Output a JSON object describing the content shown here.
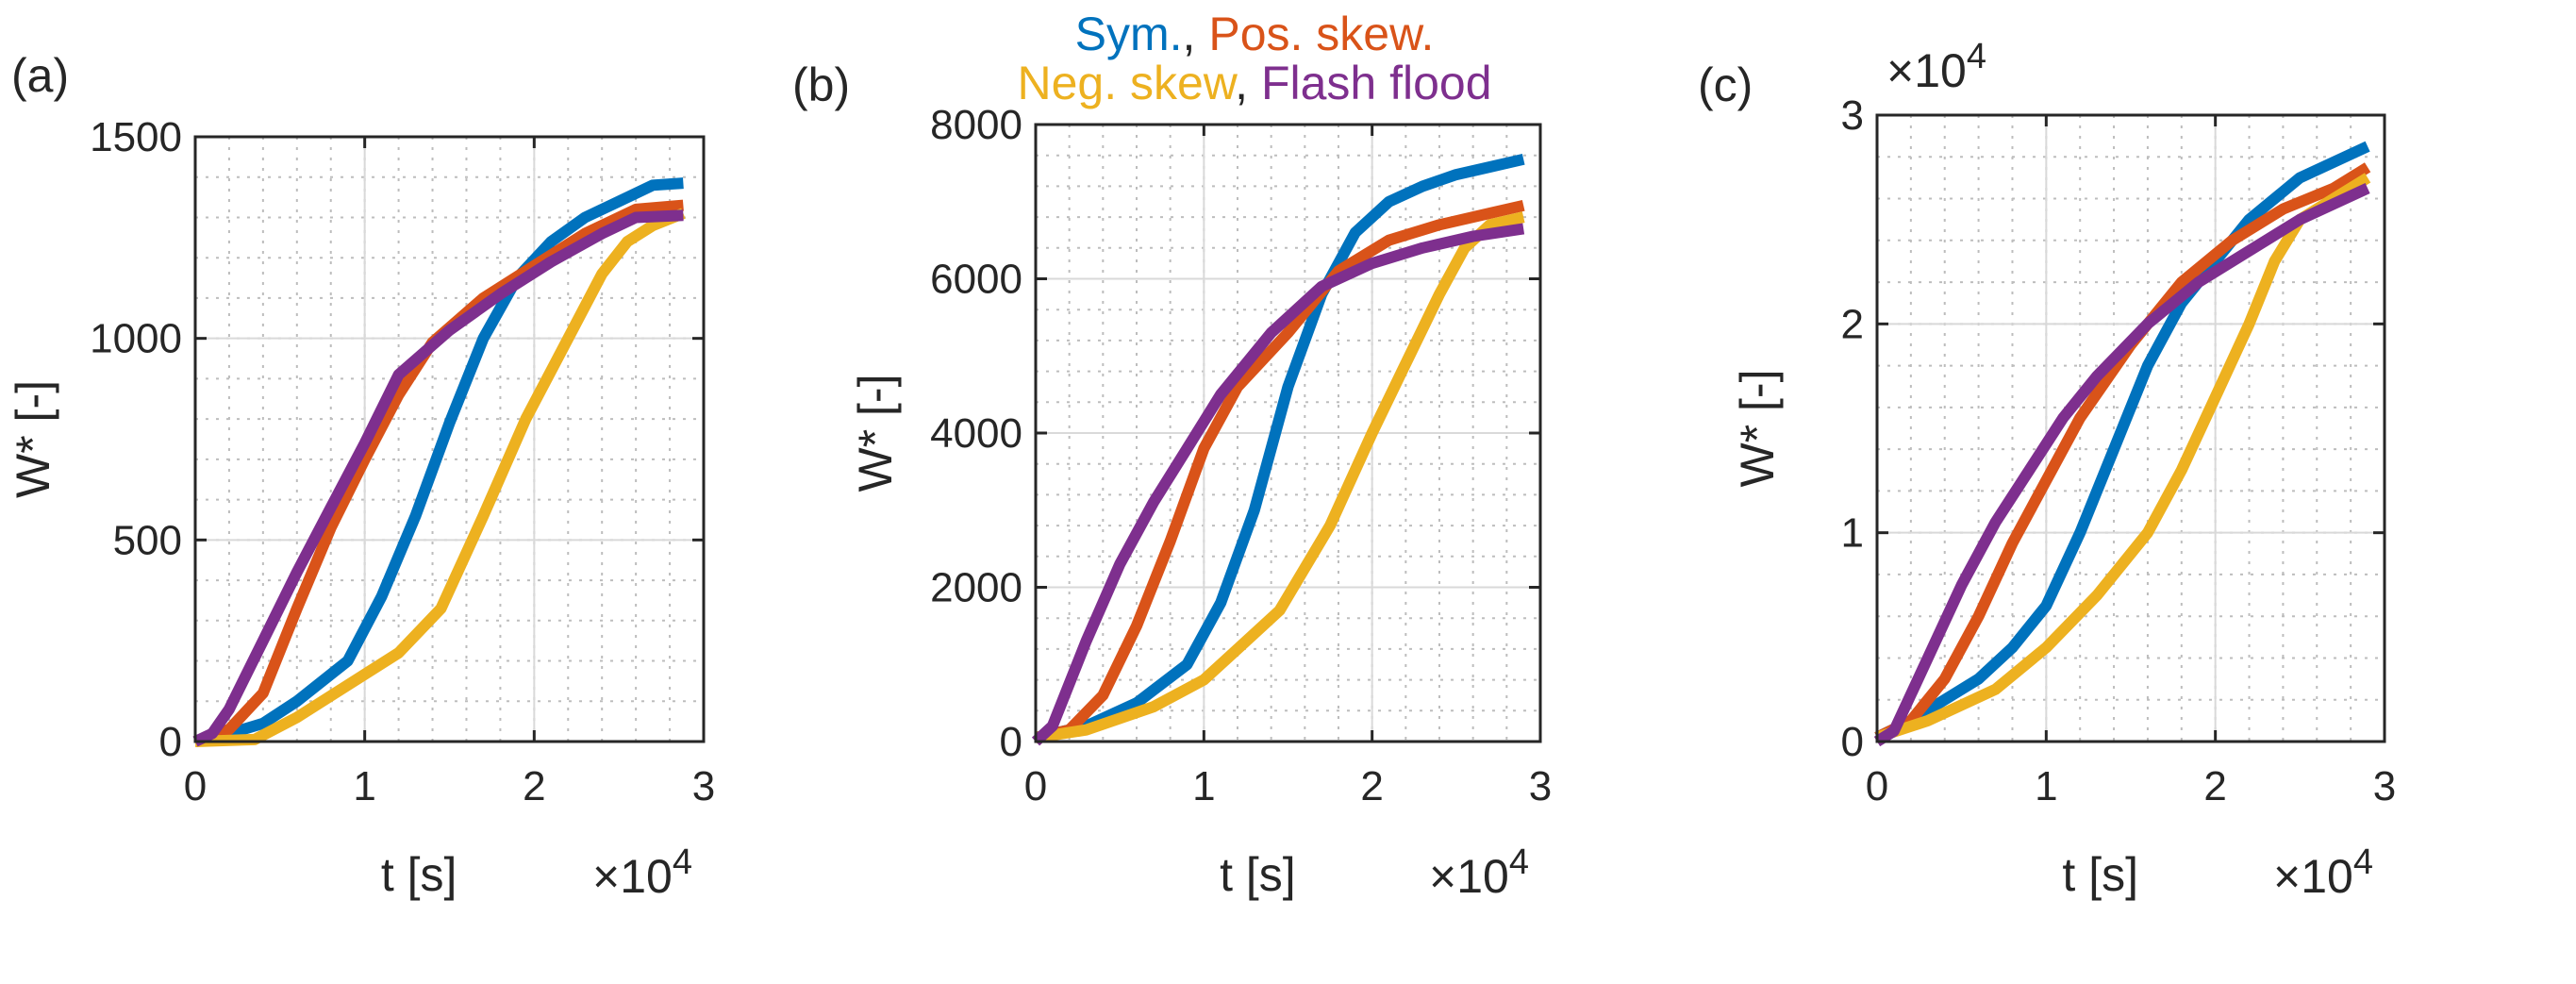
{
  "legend": {
    "line1": [
      {
        "text": "Sym.",
        "color": "#0072BD"
      },
      {
        "text": ", ",
        "color": "#262626"
      },
      {
        "text": "Pos. skew.",
        "color": "#D95319"
      }
    ],
    "line2": [
      {
        "text": "Neg. skew",
        "color": "#EDB120"
      },
      {
        "text": ", ",
        "color": "#262626"
      },
      {
        "text": "Flash flood",
        "color": "#7E2F8E"
      }
    ]
  },
  "chart_data": [
    {
      "type": "line",
      "panel_label": "(a)",
      "xlabel": "t [s]",
      "ylabel": "W* [-]",
      "x_exponent_label": "×10",
      "x_exponent_power": "4",
      "y_exponent_label": "",
      "y_exponent_power": "",
      "xlim": [
        0,
        3
      ],
      "ylim": [
        0,
        1500
      ],
      "xticks": [
        0,
        1,
        2,
        3
      ],
      "xtick_labels": [
        "0",
        "1",
        "2",
        "3"
      ],
      "yticks": [
        0,
        500,
        1000,
        1500
      ],
      "ytick_labels": [
        "0",
        "500",
        "1000",
        "1500"
      ],
      "grid": true,
      "series": [
        {
          "name": "Sym.",
          "color": "#0072BD",
          "x": [
            0,
            0.2,
            0.4,
            0.6,
            0.9,
            1.1,
            1.3,
            1.5,
            1.7,
            1.9,
            2.1,
            2.3,
            2.5,
            2.7,
            2.88
          ],
          "y": [
            0,
            20,
            45,
            100,
            200,
            360,
            560,
            790,
            1000,
            1150,
            1240,
            1300,
            1340,
            1380,
            1385
          ]
        },
        {
          "name": "Pos. skew.",
          "color": "#D95319",
          "x": [
            0,
            0.2,
            0.4,
            0.6,
            0.8,
            1.0,
            1.2,
            1.4,
            1.7,
            2.0,
            2.3,
            2.6,
            2.88
          ],
          "y": [
            0,
            30,
            120,
            330,
            530,
            700,
            860,
            990,
            1100,
            1180,
            1260,
            1320,
            1330
          ]
        },
        {
          "name": "Neg. skew",
          "color": "#EDB120",
          "x": [
            0,
            0.35,
            0.6,
            0.9,
            1.2,
            1.45,
            1.7,
            1.95,
            2.2,
            2.4,
            2.55,
            2.7,
            2.88
          ],
          "y": [
            0,
            5,
            60,
            140,
            220,
            330,
            560,
            800,
            1000,
            1160,
            1240,
            1280,
            1310
          ]
        },
        {
          "name": "Flash flood",
          "color": "#7E2F8E",
          "x": [
            0,
            0.1,
            0.2,
            0.4,
            0.6,
            0.8,
            1.0,
            1.2,
            1.5,
            1.8,
            2.1,
            2.4,
            2.6,
            2.88
          ],
          "y": [
            0,
            20,
            80,
            250,
            420,
            580,
            740,
            910,
            1020,
            1110,
            1190,
            1260,
            1300,
            1305
          ]
        }
      ]
    },
    {
      "type": "line",
      "panel_label": "(b)",
      "xlabel": "t [s]",
      "ylabel": "W* [-]",
      "x_exponent_label": "×10",
      "x_exponent_power": "4",
      "y_exponent_label": "",
      "y_exponent_power": "",
      "xlim": [
        0,
        3
      ],
      "ylim": [
        0,
        8000
      ],
      "xticks": [
        0,
        1,
        2,
        3
      ],
      "xtick_labels": [
        "0",
        "1",
        "2",
        "3"
      ],
      "yticks": [
        0,
        2000,
        4000,
        6000,
        8000
      ],
      "ytick_labels": [
        "0",
        "2000",
        "4000",
        "6000",
        "8000"
      ],
      "grid": true,
      "series": [
        {
          "name": "Sym.",
          "color": "#0072BD",
          "x": [
            0,
            0.3,
            0.6,
            0.9,
            1.1,
            1.3,
            1.5,
            1.7,
            1.9,
            2.1,
            2.3,
            2.5,
            2.7,
            2.9
          ],
          "y": [
            50,
            200,
            500,
            1000,
            1800,
            3000,
            4600,
            5800,
            6600,
            7000,
            7200,
            7350,
            7450,
            7550
          ]
        },
        {
          "name": "Pos. skew.",
          "color": "#D95319",
          "x": [
            0,
            0.2,
            0.4,
            0.6,
            0.8,
            1.0,
            1.2,
            1.5,
            1.8,
            2.1,
            2.4,
            2.7,
            2.9
          ],
          "y": [
            50,
            150,
            600,
            1500,
            2600,
            3800,
            4600,
            5300,
            6100,
            6500,
            6700,
            6850,
            6950
          ]
        },
        {
          "name": "Neg. skew",
          "color": "#EDB120",
          "x": [
            0,
            0.3,
            0.7,
            1.0,
            1.2,
            1.45,
            1.75,
            2.0,
            2.2,
            2.4,
            2.55,
            2.7,
            2.9
          ],
          "y": [
            50,
            150,
            450,
            800,
            1200,
            1700,
            2800,
            4000,
            4900,
            5800,
            6400,
            6700,
            6800
          ]
        },
        {
          "name": "Flash flood",
          "color": "#7E2F8E",
          "x": [
            0,
            0.1,
            0.3,
            0.5,
            0.7,
            0.9,
            1.1,
            1.4,
            1.7,
            2.0,
            2.3,
            2.6,
            2.9
          ],
          "y": [
            0,
            200,
            1300,
            2300,
            3100,
            3800,
            4500,
            5300,
            5900,
            6200,
            6400,
            6550,
            6650
          ]
        }
      ]
    },
    {
      "type": "line",
      "panel_label": "(c)",
      "xlabel": "t [s]",
      "ylabel": "W* [-]",
      "x_exponent_label": "×10",
      "x_exponent_power": "4",
      "y_exponent_label": "×10",
      "y_exponent_power": "4",
      "xlim": [
        0,
        3
      ],
      "ylim": [
        0,
        3
      ],
      "xticks": [
        0,
        1,
        2,
        3
      ],
      "xtick_labels": [
        "0",
        "1",
        "2",
        "3"
      ],
      "yticks": [
        0,
        1,
        2,
        3
      ],
      "ytick_labels": [
        "0",
        "1",
        "2",
        "3"
      ],
      "grid": true,
      "series": [
        {
          "name": "Sym.",
          "color": "#0072BD",
          "x": [
            0,
            0.2,
            0.4,
            0.6,
            0.8,
            1.0,
            1.2,
            1.4,
            1.6,
            1.8,
            2.0,
            2.2,
            2.5,
            2.9
          ],
          "y": [
            0.02,
            0.1,
            0.2,
            0.3,
            0.45,
            0.65,
            1.0,
            1.4,
            1.8,
            2.1,
            2.3,
            2.5,
            2.7,
            2.85
          ]
        },
        {
          "name": "Pos. skew.",
          "color": "#D95319",
          "x": [
            0,
            0.2,
            0.4,
            0.6,
            0.8,
            1.0,
            1.2,
            1.5,
            1.8,
            2.1,
            2.4,
            2.7,
            2.9
          ],
          "y": [
            0.02,
            0.1,
            0.3,
            0.6,
            0.95,
            1.25,
            1.55,
            1.9,
            2.2,
            2.4,
            2.55,
            2.65,
            2.75
          ]
        },
        {
          "name": "Neg. skew",
          "color": "#EDB120",
          "x": [
            0,
            0.3,
            0.7,
            1.0,
            1.3,
            1.6,
            1.8,
            2.0,
            2.2,
            2.35,
            2.5,
            2.7,
            2.9
          ],
          "y": [
            0.02,
            0.1,
            0.25,
            0.45,
            0.7,
            1.0,
            1.3,
            1.65,
            2.0,
            2.3,
            2.5,
            2.6,
            2.7
          ]
        },
        {
          "name": "Flash flood",
          "color": "#7E2F8E",
          "x": [
            0,
            0.1,
            0.3,
            0.5,
            0.7,
            0.9,
            1.1,
            1.3,
            1.6,
            1.9,
            2.2,
            2.5,
            2.9
          ],
          "y": [
            0,
            0.05,
            0.4,
            0.75,
            1.05,
            1.3,
            1.55,
            1.75,
            2.0,
            2.2,
            2.35,
            2.5,
            2.65
          ]
        }
      ]
    }
  ]
}
